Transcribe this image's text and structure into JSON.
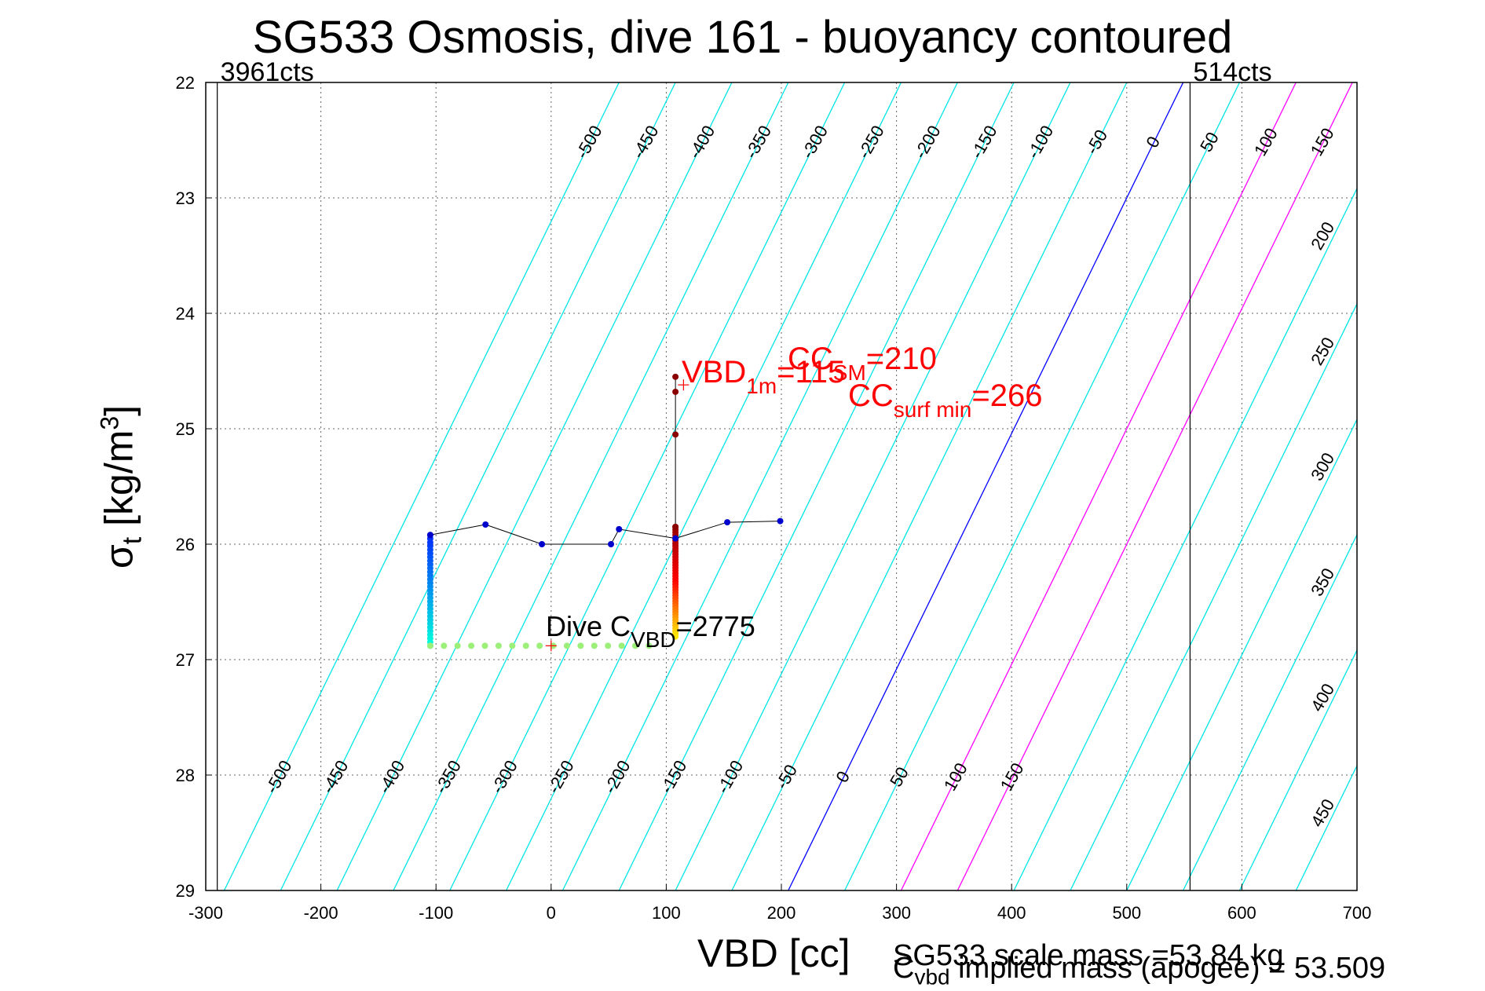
{
  "title": "SG533 Osmosis, dive 161 - buoyancy contoured",
  "xlabel": "VBD [cc]",
  "ylabel_main": "σ",
  "ylabel_sub": "t",
  "ylabel_unit": "[kg/m",
  "ylabel_sup": "3",
  "ylabel_close": "]",
  "notes": {
    "scale_mass": "SG533 scale mass =53.84 kg",
    "implied_main": "C",
    "implied_sub": "vbd",
    "implied_rest": " implied mass (apogee) = 53.509"
  },
  "chart_data": {
    "type": "scatter",
    "xlim": [
      -300,
      700
    ],
    "ylim": [
      22,
      29
    ],
    "y_reversed": true,
    "grid": true,
    "xticks": [
      "-300",
      "-200",
      "-100",
      "0",
      "100",
      "200",
      "300",
      "400",
      "500",
      "600",
      "700"
    ],
    "yticks": [
      "22",
      "23",
      "24",
      "25",
      "26",
      "27",
      "28",
      "29"
    ],
    "counts_labels": [
      {
        "text": "3961cts",
        "x": -290
      },
      {
        "text": "514cts",
        "x": 555
      }
    ],
    "count_limits_x": [
      -290,
      555
    ],
    "buoyancy_contour_levels": [
      -500,
      -450,
      -400,
      -350,
      -300,
      -250,
      -200,
      -150,
      -100,
      -50,
      0,
      50,
      100,
      150,
      200,
      250,
      300,
      350,
      400,
      450
    ],
    "contour_colors": {
      "default": "#00e5e5",
      "zero": "#0000ff",
      "selected": "#ff00ff"
    },
    "selected_contours": [
      100,
      150
    ],
    "top_contour_labels": [
      "-500",
      "-450",
      "-400",
      "-350",
      "-300",
      "-250",
      "-200",
      "-150",
      "-100",
      "-50",
      "0",
      "50",
      "100",
      "150"
    ],
    "bottom_contour_labels": [
      "-500",
      "-450",
      "-400",
      "-350",
      "-300",
      "-250",
      "-200",
      "-150",
      "-100",
      "-50",
      "0",
      "50",
      "100",
      "150"
    ],
    "right_contour_labels": [
      "200",
      "250",
      "300",
      "350",
      "400",
      "450"
    ],
    "dive_track": [
      {
        "x": -105,
        "y": 25.92
      },
      {
        "x": -57,
        "y": 25.83
      },
      {
        "x": -8,
        "y": 26.0
      },
      {
        "x": 52,
        "y": 26.0
      },
      {
        "x": 59,
        "y": 25.87
      },
      {
        "x": 108,
        "y": 25.95
      },
      {
        "x": 153,
        "y": 25.81
      },
      {
        "x": 199,
        "y": 25.8
      }
    ],
    "descent_column": {
      "x": -105,
      "y_from": 25.92,
      "y_to": 26.88
    },
    "bottom_row": {
      "x_from": -105,
      "x_to": 85,
      "y": 26.88
    },
    "apogee_column": {
      "x": 108,
      "y_from": 25.85,
      "y_to": 26.8
    },
    "surface_points": [
      {
        "x": 108,
        "y": 24.55
      },
      {
        "x": 108,
        "y": 24.68
      },
      {
        "x": 108,
        "y": 25.05
      },
      {
        "x": 108,
        "y": 25.85
      }
    ],
    "markers": [
      {
        "x": 115,
        "y": 24.62
      },
      {
        "x": 0,
        "y": 26.88
      }
    ],
    "annotations": {
      "vbd1m_main": "VBD",
      "vbd1m_sub": "1m",
      "vbd1m_value": "=115",
      "ccsm_main": "CC",
      "ccsm_sub": "SM",
      "ccsm_value": "=210",
      "ccsurf_main": "CC",
      "ccsurf_sub": "surf min",
      "ccsurf_value": "=266",
      "dive_main": "Dive C",
      "dive_sub": "VBD",
      "dive_value": "=2775"
    }
  }
}
